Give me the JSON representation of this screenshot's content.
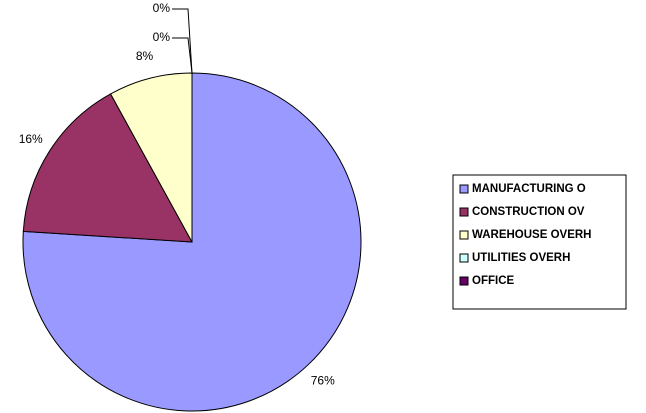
{
  "chart_data": {
    "type": "pie",
    "categories": [
      "MANUFACTURING O",
      "CONSTRUCTION OV",
      "WAREHOUSE OVERH",
      "UTILITIES OVERH",
      "OFFICE"
    ],
    "values": [
      76,
      16,
      8,
      0,
      0
    ],
    "value_labels": [
      "76%",
      "16%",
      "8%",
      "0%",
      "0%"
    ],
    "colors": [
      "#9999ff",
      "#993366",
      "#ffffcc",
      "#ccffff",
      "#660066"
    ],
    "legend": "right"
  }
}
